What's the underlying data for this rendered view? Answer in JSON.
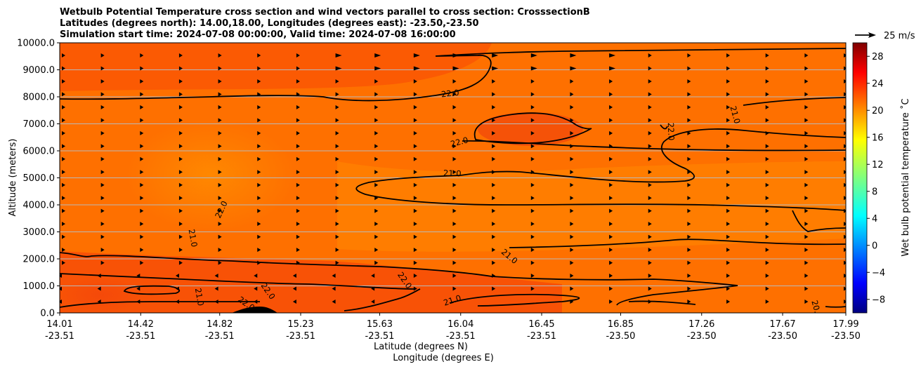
{
  "chart_data": {
    "type": "heatmap",
    "title_lines": [
      "Wetbulb Potential Temperature cross section and wind vectors parallel to cross section: CrosssectionB",
      "Latitudes (degrees north): 14.00,18.00, Longitudes (degrees east): -23.50,-23.50",
      "Simulation start time: 2024-07-08 00:00:00, Valid time: 2024-07-08 16:00:00"
    ],
    "ylabel": "Altitude (meters)",
    "xlabel_lines": [
      "Latitude (degrees N)",
      "Longitude (degrees E)"
    ],
    "ylim": [
      0,
      10000
    ],
    "y_ticks": [
      "0.0",
      "1000.0",
      "2000.0",
      "3000.0",
      "4000.0",
      "5000.0",
      "6000.0",
      "7000.0",
      "8000.0",
      "9000.0",
      "10000.0"
    ],
    "x_ticks": [
      {
        "lat": "14.01",
        "lon": "-23.51"
      },
      {
        "lat": "14.42",
        "lon": "-23.51"
      },
      {
        "lat": "14.82",
        "lon": "-23.51"
      },
      {
        "lat": "15.23",
        "lon": "-23.51"
      },
      {
        "lat": "15.63",
        "lon": "-23.51"
      },
      {
        "lat": "16.04",
        "lon": "-23.51"
      },
      {
        "lat": "16.45",
        "lon": "-23.51"
      },
      {
        "lat": "16.85",
        "lon": "-23.50"
      },
      {
        "lat": "17.26",
        "lon": "-23.50"
      },
      {
        "lat": "17.67",
        "lon": "-23.50"
      },
      {
        "lat": "17.99",
        "lon": "-23.50"
      }
    ],
    "colorbar": {
      "label": "Wet bulb potential temperature ˚C",
      "range": [
        -10,
        30
      ],
      "ticks": [
        "28",
        "24",
        "20",
        "16",
        "12",
        "8",
        "4",
        "0",
        "−4",
        "−8"
      ],
      "colormap": "jet"
    },
    "quiver_key": {
      "label": "25 m/s"
    },
    "contour_labels": [
      "22.0",
      "22.0",
      "21.0",
      "22.0",
      "22.0",
      "21.0",
      "21.0",
      "22.0",
      "21.0",
      "21.0",
      "22.0",
      "22.0",
      "21.0",
      "20.0",
      "20.0",
      "20.0",
      "21.0",
      "20.0"
    ],
    "field_range_degC": [
      20,
      23
    ],
    "wind": "mostly eastward (positive along section) above ~2000 m, westward arrows in the lowest levels near 14.0-15.6"
  }
}
